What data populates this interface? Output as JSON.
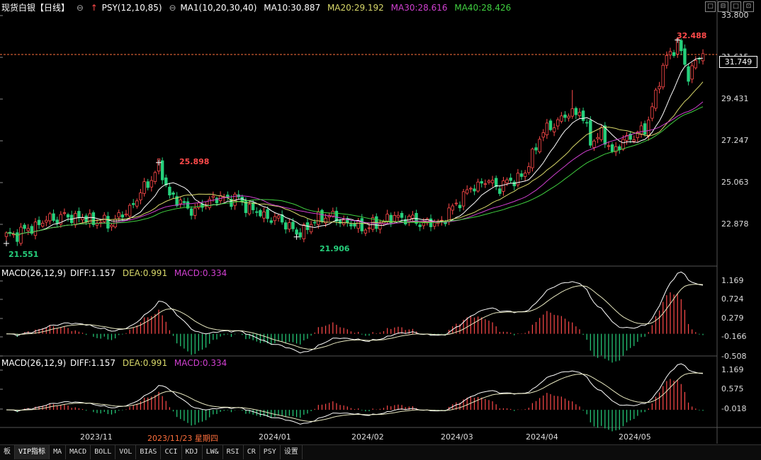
{
  "header": {
    "title": "现货白银【日线】",
    "psy": "PSY(12,10,85)",
    "ma_params": "MA1(10,20,30,40)",
    "ma10": "MA10:30.887",
    "ma20": "MA20:29.192",
    "ma30": "MA30:28.616",
    "ma40": "MA40:28.426"
  },
  "window_buttons": [
    "□",
    "⊟",
    "□",
    "⊡"
  ],
  "price_axis": [
    "33.800",
    "31.615",
    "29.431",
    "27.247",
    "25.063",
    "22.878"
  ],
  "current_price": "31.749",
  "annotations": {
    "high1": "32.488",
    "high2": "25.898",
    "low1": "21.551",
    "low2": "21.906"
  },
  "macd1": {
    "title": "MACD(26,12,9)",
    "diff": "DIFF:1.157",
    "dea": "DEA:0.991",
    "macd": "MACD:0.334",
    "axis": [
      "1.169",
      "0.724",
      "0.279",
      "-0.166",
      "-0.508"
    ]
  },
  "macd2": {
    "title": "MACD(26,12,9)",
    "diff": "DIFF:1.157",
    "dea": "DEA:0.991",
    "macd": "MACD:0.334",
    "axis": [
      "1.169",
      "0.575",
      "-0.018"
    ]
  },
  "x_axis": [
    "2023/11",
    "2023/11/23 星期四",
    "2024/01",
    "2024/02",
    "2024/03",
    "2024/04",
    "2024/05"
  ],
  "tabs": [
    "板",
    "VIP指标",
    "MA",
    "MACD",
    "BOLL",
    "VOL",
    "BIAS",
    "CCI",
    "KDJ",
    "LW&",
    "RSI",
    "CR",
    "PSY",
    "设置"
  ],
  "colors": {
    "up": "#ff4a4a",
    "down": "#26d07c",
    "ma10": "#ffffff",
    "ma20": "#d9d96a",
    "ma30": "#d040d0",
    "ma40": "#40d040",
    "accent": "#ff6f3c"
  },
  "chart_data": {
    "type": "candlestick",
    "anchors": [
      [
        0,
        21.9
      ],
      [
        6,
        22.3
      ],
      [
        12,
        22.9
      ],
      [
        18,
        23.0
      ],
      [
        24,
        22.8
      ],
      [
        28,
        22.6
      ],
      [
        33,
        23.2
      ],
      [
        38,
        24.5
      ],
      [
        42,
        25.7
      ],
      [
        45,
        24.2
      ],
      [
        48,
        23.7
      ],
      [
        52,
        23.3
      ],
      [
        56,
        23.9
      ],
      [
        60,
        24.0
      ],
      [
        64,
        23.9
      ],
      [
        68,
        23.3
      ],
      [
        73,
        22.9
      ],
      [
        77,
        22.7
      ],
      [
        80,
        22.0
      ],
      [
        84,
        22.6
      ],
      [
        88,
        23.1
      ],
      [
        92,
        22.8
      ],
      [
        96,
        22.5
      ],
      [
        100,
        22.4
      ],
      [
        104,
        22.8
      ],
      [
        108,
        23.0
      ],
      [
        112,
        22.8
      ],
      [
        116,
        22.6
      ],
      [
        120,
        22.7
      ],
      [
        124,
        23.7
      ],
      [
        128,
        24.5
      ],
      [
        132,
        24.9
      ],
      [
        136,
        24.6
      ],
      [
        140,
        25.0
      ],
      [
        143,
        25.3
      ],
      [
        147,
        27.3
      ],
      [
        151,
        28.0
      ],
      [
        155,
        28.5
      ],
      [
        158,
        28.7
      ],
      [
        161,
        27.1
      ],
      [
        164,
        27.4
      ],
      [
        167,
        26.5
      ],
      [
        170,
        27.0
      ],
      [
        173,
        27.4
      ],
      [
        176,
        27.6
      ],
      [
        179,
        29.6
      ],
      [
        182,
        31.6
      ],
      [
        185,
        32.3
      ],
      [
        188,
        30.6
      ],
      [
        190,
        31.3
      ],
      [
        192,
        31.75
      ]
    ],
    "n_candles": 193,
    "annotations": {
      "high": 32.488,
      "high_prev": 25.898,
      "low": 21.551,
      "low_prev": 21.906
    },
    "ma10": 30.887,
    "ma20": 29.192,
    "ma30": 28.616,
    "ma40": 28.426,
    "macd": {
      "diff": 1.157,
      "dea": 0.991,
      "macd": 0.334
    },
    "price_range": [
      21.4,
      33.8
    ]
  }
}
